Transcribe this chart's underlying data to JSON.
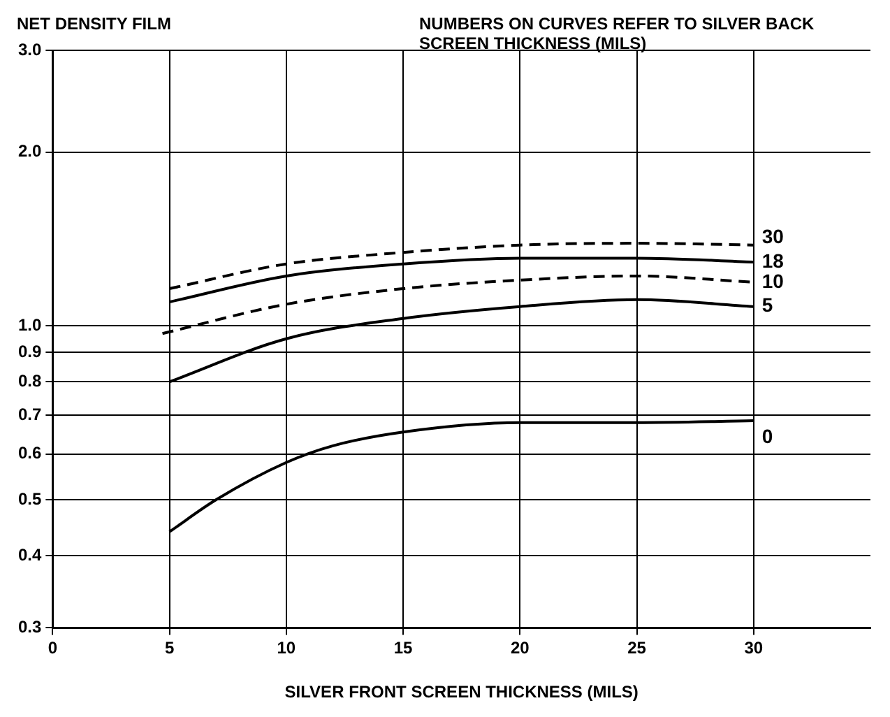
{
  "chart_data": {
    "type": "line",
    "ylabel": "NET DENSITY FILM",
    "xlabel": "SILVER FRONT SCREEN THICKNESS (MILS)",
    "annotations": [
      "NUMBERS ON CURVES REFER TO SILVER BACK SCREEN THICKNESS (MILS)"
    ],
    "log": "y",
    "grid": true,
    "legend": false,
    "marker": "none",
    "xlim": [
      0,
      35
    ],
    "xticks": [
      0,
      5,
      10,
      15,
      20,
      25,
      30
    ],
    "ylim": [
      0.3,
      3.0
    ],
    "yticks": [
      {
        "value": 0.3,
        "label": "0.3"
      },
      {
        "value": 0.4,
        "label": "0.4"
      },
      {
        "value": 0.5,
        "label": "0.5"
      },
      {
        "value": 0.6,
        "label": "0.6"
      },
      {
        "value": 0.7,
        "label": "0.7"
      },
      {
        "value": 0.8,
        "label": "0.8"
      },
      {
        "value": 0.9,
        "label": "0.9"
      },
      {
        "value": 1.0,
        "label": "1.0"
      },
      {
        "value": 2.0,
        "label": "2.0"
      },
      {
        "value": 3.0,
        "label": "3.0"
      }
    ],
    "series": [
      {
        "name": "30",
        "color": "#000000",
        "line_style": "dashed",
        "x": [
          5,
          10,
          15,
          20,
          25,
          30
        ],
        "values": [
          1.16,
          1.28,
          1.34,
          1.38,
          1.39,
          1.38
        ]
      },
      {
        "name": "18",
        "color": "#000000",
        "line_style": "solid",
        "x": [
          5,
          10,
          15,
          20,
          25,
          30
        ],
        "values": [
          1.1,
          1.22,
          1.28,
          1.31,
          1.31,
          1.29
        ]
      },
      {
        "name": "10",
        "color": "#000000",
        "line_style": "dashed",
        "x": [
          4.7,
          10,
          15,
          20,
          25,
          30
        ],
        "values": [
          0.97,
          1.09,
          1.16,
          1.2,
          1.22,
          1.19
        ]
      },
      {
        "name": "5",
        "color": "#000000",
        "line_style": "solid",
        "x": [
          5,
          10,
          15,
          20,
          25,
          30
        ],
        "values": [
          0.8,
          0.95,
          1.03,
          1.08,
          1.11,
          1.08
        ]
      },
      {
        "name": "0",
        "color": "#000000",
        "line_style": "solid",
        "x": [
          5,
          7,
          10,
          12,
          15,
          20,
          25,
          30
        ],
        "values": [
          0.44,
          0.5,
          0.58,
          0.62,
          0.655,
          0.68,
          0.68,
          0.685
        ]
      }
    ]
  }
}
